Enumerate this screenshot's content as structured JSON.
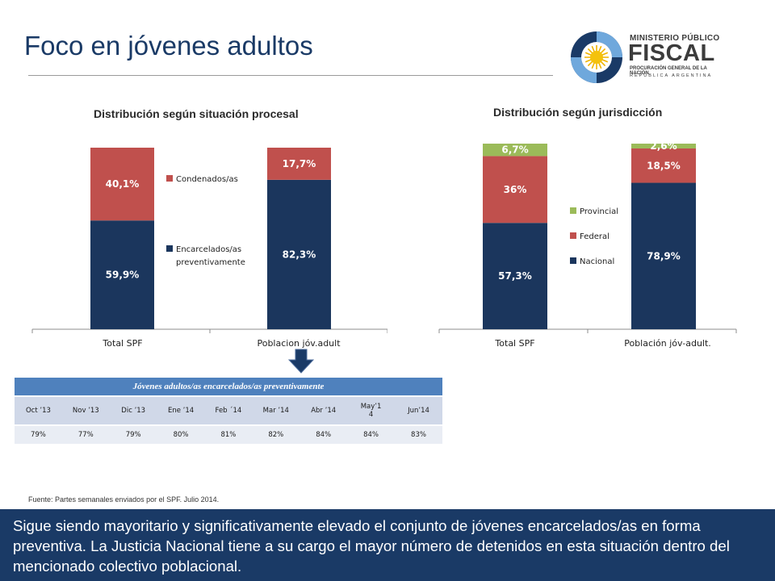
{
  "title": "Foco en jóvenes adultos",
  "logo": {
    "line1": "MINISTERIO PÚBLICO",
    "line2": "FISCAL",
    "line3": "PROCURACIÓN GENERAL DE LA NACIÓN",
    "line4": "REPÚBLICA ARGENTINA"
  },
  "chart_data": [
    {
      "type": "bar",
      "stacked": true,
      "title": "Distribución según situación procesal",
      "categories": [
        "Total SPF",
        "Poblacion jóv.adult"
      ],
      "series": [
        {
          "name": "Encarcelados/as preventivamente",
          "values": [
            59.9,
            82.3
          ],
          "labels": [
            "59,9%",
            "82,3%"
          ],
          "color": "#1b365d"
        },
        {
          "name": "Condenados/as",
          "values": [
            40.1,
            17.7
          ],
          "labels": [
            "40,1%",
            "17,7%"
          ],
          "color": "#c0504d"
        }
      ],
      "legend": {
        "position": "center",
        "items": [
          {
            "text": "Condenados/as",
            "color": "#c0504d"
          },
          {
            "text": "Encarcelados/as preventivamente",
            "color": "#1b365d"
          }
        ]
      },
      "ylim": [
        0,
        100
      ],
      "grid": false
    },
    {
      "type": "bar",
      "stacked": true,
      "title": "Distribución según jurisdicción",
      "categories": [
        "Total SPF",
        "Población jóv-adult."
      ],
      "series": [
        {
          "name": "Nacional",
          "values": [
            57.3,
            78.9
          ],
          "labels": [
            "57,3%",
            "78,9%"
          ],
          "color": "#1b365d"
        },
        {
          "name": "Federal",
          "values": [
            36,
            18.5
          ],
          "labels": [
            "36%",
            "18,5%"
          ],
          "color": "#c0504d"
        },
        {
          "name": "Provincial",
          "values": [
            6.7,
            2.6
          ],
          "labels": [
            "6,7%",
            "2,6%"
          ],
          "color": "#9bbb59"
        }
      ],
      "legend": {
        "position": "center",
        "items": [
          {
            "text": "Provincial",
            "color": "#9bbb59"
          },
          {
            "text": "Federal",
            "color": "#c0504d"
          },
          {
            "text": "Nacional",
            "color": "#1b365d"
          }
        ]
      },
      "ylim": [
        0,
        100
      ],
      "grid": false
    },
    {
      "type": "table",
      "title": "Jóvenes adultos/as encarcelados/as preventivamente",
      "columns": [
        "Oct ’13",
        "Nov ’13",
        "Dic ’13",
        "Ene ’14",
        "Feb ´14",
        "Mar ’14",
        "Abr ’14",
        "May’14",
        "Jun’14"
      ],
      "values": [
        "79%",
        "77%",
        "79%",
        "80%",
        "81%",
        "82%",
        "84%",
        "84%",
        "83%"
      ]
    }
  ],
  "source": "Fuente: Partes semanales enviados por el SPF. Julio 2014.",
  "footer_text": "Sigue siendo mayoritario y significativamente elevado el conjunto de jóvenes encarcelados/as en forma preventiva. La Justicia Nacional tiene a su cargo el mayor número de detenidos en esta situación dentro del mencionado colectivo poblacional."
}
